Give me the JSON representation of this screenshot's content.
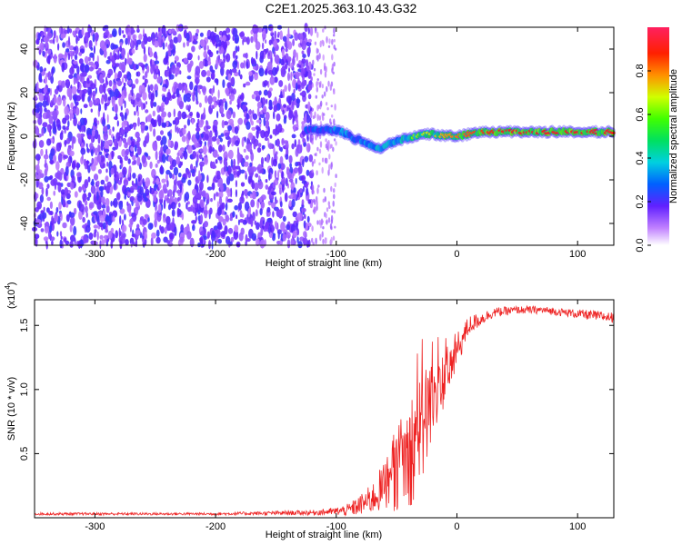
{
  "title": "C2E1.2025.363.10.43.G32",
  "chart_data": [
    {
      "type": "heatmap",
      "panel": "spectrogram",
      "xlabel": "Height of straight line (km)",
      "ylabel": "Frequency (Hz)",
      "xlim": [
        -350,
        130
      ],
      "ylim": [
        -50,
        50
      ],
      "xticks": [
        -300,
        -200,
        -100,
        0,
        100
      ],
      "yticks": [
        -40,
        -20,
        0,
        20,
        40
      ],
      "noise_region_xmax": -120,
      "sparse_noise_region_xmax": -100,
      "signal_trace": {
        "x": [
          -125,
          -115,
          -105,
          -95,
          -85,
          -75,
          -68,
          -62,
          -58,
          -50,
          -40,
          -30,
          -20,
          -10,
          0,
          20,
          40,
          60,
          80,
          100,
          120,
          130
        ],
        "y": [
          3,
          3,
          3,
          2,
          -1,
          -3,
          -5,
          -6,
          -4,
          -2,
          -1,
          1,
          1,
          0,
          0,
          2,
          2,
          2,
          2,
          2,
          2,
          2
        ],
        "amplitude": [
          0.3,
          0.35,
          0.4,
          0.4,
          0.4,
          0.45,
          0.45,
          0.5,
          0.5,
          0.5,
          0.6,
          0.65,
          0.7,
          0.75,
          0.8,
          0.85,
          0.9,
          0.9,
          0.9,
          0.9,
          0.9,
          0.9
        ]
      },
      "colorbar": {
        "label": "Normalized spectral amplitude",
        "range": [
          0,
          1
        ],
        "ticks": [
          "0.0",
          "0.2",
          "0.4",
          "0.6",
          "0.8"
        ],
        "tick_values": [
          0.0,
          0.2,
          0.4,
          0.6,
          0.8
        ]
      }
    },
    {
      "type": "line",
      "panel": "snr",
      "xlabel": "Height of straight line (km)",
      "ylabel": "SNR (10 * v/v)",
      "scale_label": "(x10",
      "scale_exp": "4",
      "scale_close": ")",
      "xlim": [
        -350,
        130
      ],
      "ylim": [
        0,
        1.7
      ],
      "xticks": [
        -300,
        -200,
        -100,
        0,
        100
      ],
      "yticks": [
        "0.5",
        "1.0",
        "1.5"
      ],
      "ytick_values": [
        0.5,
        1.0,
        1.5
      ],
      "color": "#ee2222",
      "series": {
        "x": [
          -350,
          -300,
          -200,
          -120,
          -100,
          -90,
          -80,
          -70,
          -60,
          -55,
          -50,
          -45,
          -40,
          -35,
          -30,
          -25,
          -20,
          -15,
          -10,
          -5,
          0,
          5,
          10,
          20,
          30,
          50,
          70,
          90,
          110,
          130
        ],
        "y": [
          0.03,
          0.03,
          0.03,
          0.04,
          0.05,
          0.06,
          0.1,
          0.15,
          0.25,
          0.3,
          0.35,
          0.45,
          0.5,
          0.6,
          0.7,
          0.8,
          0.9,
          1.0,
          1.1,
          1.2,
          1.3,
          1.4,
          1.5,
          1.55,
          1.6,
          1.62,
          1.62,
          1.6,
          1.58,
          1.56
        ],
        "noise": [
          0.01,
          0.01,
          0.01,
          0.02,
          0.03,
          0.05,
          0.08,
          0.12,
          0.2,
          0.25,
          0.3,
          0.4,
          0.45,
          0.45,
          0.45,
          0.4,
          0.35,
          0.3,
          0.25,
          0.2,
          0.15,
          0.1,
          0.08,
          0.05,
          0.04,
          0.03,
          0.03,
          0.03,
          0.04,
          0.04
        ]
      }
    }
  ]
}
